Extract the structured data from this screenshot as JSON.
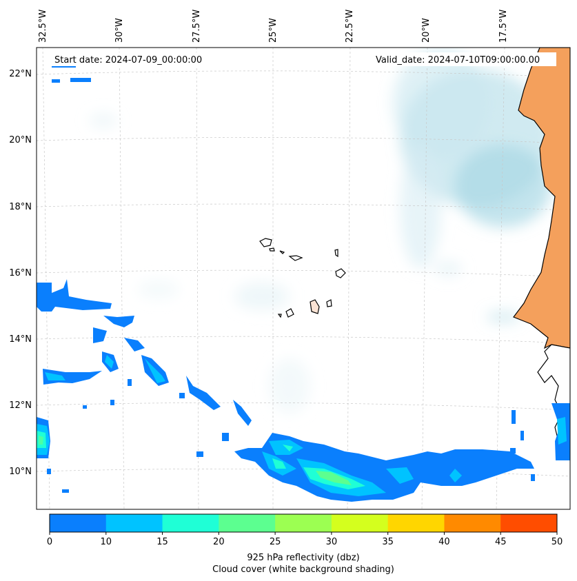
{
  "top_longitude_labels": [
    "32.5°W",
    "30°W",
    "27.5°W",
    "25°W",
    "22.5°W",
    "20°W",
    "17.5°W"
  ],
  "left_latitude_labels": [
    "22°N",
    "20°N",
    "18°N",
    "16°N",
    "14°N",
    "12°N",
    "10°N"
  ],
  "start_date": "Start date: 2024-07-09_00:00:00",
  "valid_date": "Valid_date: 2024-07-10T09:00:00.00",
  "colorbar": {
    "ticks": [
      "0",
      "10",
      "15",
      "20",
      "25",
      "30",
      "35",
      "40",
      "45",
      "50"
    ],
    "colors": [
      "#0a7ffd",
      "#00c3ff",
      "#1fffd6",
      "#5cff90",
      "#9cff52",
      "#d4ff1e",
      "#ffd600",
      "#ff8a00",
      "#ff4d00"
    ],
    "label_line1": "925 hPa reflectivity (dbz)",
    "label_line2": "Cloud cover (white background shading)"
  },
  "colors": {
    "land": "#f4a05c",
    "cloud": "#a9d8e6",
    "grid": "#c8c8c8"
  }
}
